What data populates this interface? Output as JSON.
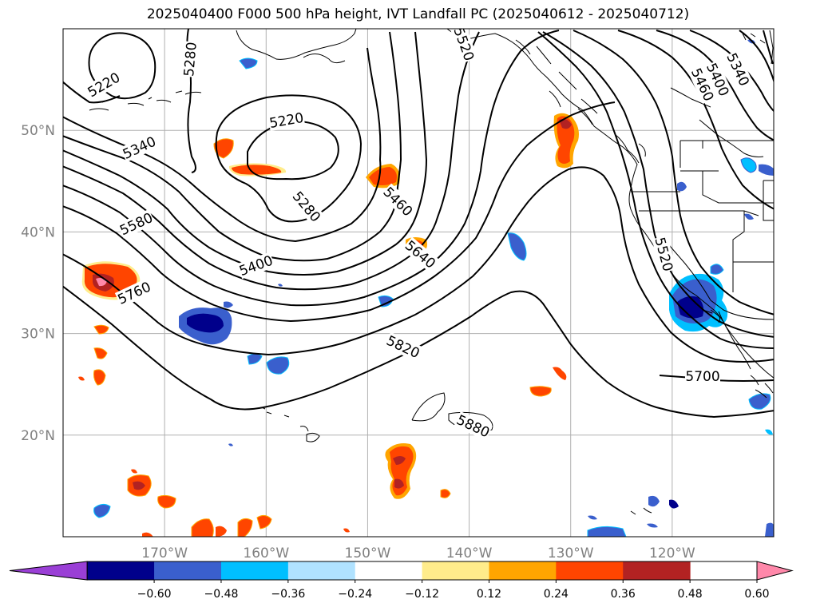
{
  "title": "2025040400 F000 500 hPa height, IVT Landfall PC (2025040612 - 2025040712)",
  "lat_ticks": [
    {
      "value": 50,
      "label": "50°N"
    },
    {
      "value": 40,
      "label": "40°N"
    },
    {
      "value": 30,
      "label": "30°N"
    },
    {
      "value": 20,
      "label": "20°N"
    }
  ],
  "lon_ticks": [
    {
      "value": -170,
      "label": "170°W"
    },
    {
      "value": -160,
      "label": "160°W"
    },
    {
      "value": -150,
      "label": "150°W"
    },
    {
      "value": -140,
      "label": "140°W"
    },
    {
      "value": -130,
      "label": "130°W"
    },
    {
      "value": -120,
      "label": "120°W"
    }
  ],
  "colorbar": {
    "levels": [
      -0.6,
      -0.48,
      -0.36,
      -0.24,
      -0.12,
      0.12,
      0.24,
      0.36,
      0.48,
      0.6
    ],
    "labels": [
      "−0.60",
      "−0.48",
      "−0.36",
      "−0.24",
      "−0.12",
      "0.12",
      "0.24",
      "0.36",
      "0.48",
      "0.60"
    ],
    "colors": [
      "#9a3fd6",
      "#00008b",
      "#3a5fcd",
      "#00bfff",
      "#b0e2ff",
      "#ffffff",
      "#ffec8b",
      "#ffa500",
      "#ff4500",
      "#b22222",
      "#ff88aa"
    ]
  },
  "contour_labels": [
    "5220",
    "5280",
    "5340",
    "5400",
    "5460",
    "5520",
    "5580",
    "5640",
    "5700",
    "5760",
    "5820",
    "5880"
  ],
  "contour_label_places": [
    {
      "text": "5220",
      "lon": -176,
      "lat": 54.5,
      "angle": 30
    },
    {
      "text": "5280",
      "lon": -167.5,
      "lat": 57,
      "angle": 85
    },
    {
      "text": "5220",
      "lon": -158,
      "lat": 51,
      "angle": 10
    },
    {
      "text": "5340",
      "lon": -172.5,
      "lat": 48.3,
      "angle": 25
    },
    {
      "text": "5280",
      "lon": -156,
      "lat": 42.5,
      "angle": -50
    },
    {
      "text": "5460",
      "lon": -147,
      "lat": 43,
      "angle": -45
    },
    {
      "text": "5520",
      "lon": -140.5,
      "lat": 58.5,
      "angle": -70
    },
    {
      "text": "5580",
      "lon": -172.8,
      "lat": 40.8,
      "angle": 25
    },
    {
      "text": "5400",
      "lon": -161,
      "lat": 36.7,
      "angle": 20
    },
    {
      "text": "5640",
      "lon": -144.8,
      "lat": 37.8,
      "angle": -40
    },
    {
      "text": "5760",
      "lon": -173,
      "lat": 34,
      "angle": 25
    },
    {
      "text": "5820",
      "lon": -146.5,
      "lat": 28.7,
      "angle": -25
    },
    {
      "text": "5880",
      "lon": -139.6,
      "lat": 20.9,
      "angle": -25
    },
    {
      "text": "5700",
      "lon": -117,
      "lat": 25.8,
      "angle": 0
    },
    {
      "text": "5520",
      "lon": -120.8,
      "lat": 37.8,
      "angle": -75
    },
    {
      "text": "5460",
      "lon": -117,
      "lat": 54.5,
      "angle": -65
    },
    {
      "text": "5400",
      "lon": -115.5,
      "lat": 55,
      "angle": -65
    },
    {
      "text": "5340",
      "lon": -113.5,
      "lat": 56,
      "angle": -65
    }
  ],
  "extent": {
    "lon_min": -180,
    "lon_max": -110,
    "lat_min": 10,
    "lat_max": 60
  },
  "gridline_color": "#b0b0b0",
  "contour_color": "#000000"
}
